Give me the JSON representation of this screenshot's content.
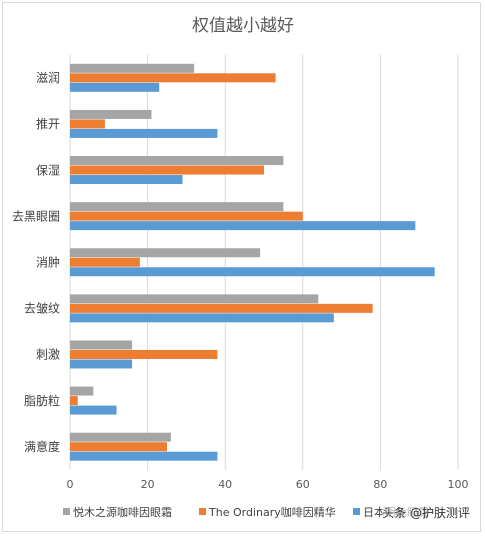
{
  "chart_data": {
    "type": "bar",
    "orientation": "horizontal",
    "title": "权值越小越好",
    "categories": [
      "滋润",
      "推开",
      "保湿",
      "去黑眼圈",
      "消肿",
      "去皱纹",
      "刺激",
      "脂肪粒",
      "满意度"
    ],
    "series": [
      {
        "name": "悦木之源咖啡因眼霜",
        "color": "#a5a5a5",
        "values": [
          32,
          21,
          55,
          55,
          49,
          64,
          16,
          6,
          26
        ]
      },
      {
        "name": "The Ordinary咖啡因精华",
        "color": "#ed7d31",
        "values": [
          53,
          9,
          50,
          60,
          18,
          78,
          38,
          2,
          25
        ]
      },
      {
        "name": "日本明色眼霜",
        "color": "#5b9bd5",
        "values": [
          23,
          38,
          29,
          89,
          94,
          68,
          16,
          12,
          38
        ]
      }
    ],
    "xlim": [
      0,
      100
    ],
    "xticks": [
      "0",
      "20",
      "40",
      "60",
      "80",
      "100"
    ],
    "grid": true,
    "legend": "bottom"
  },
  "watermark": "头条 @护肤测评"
}
